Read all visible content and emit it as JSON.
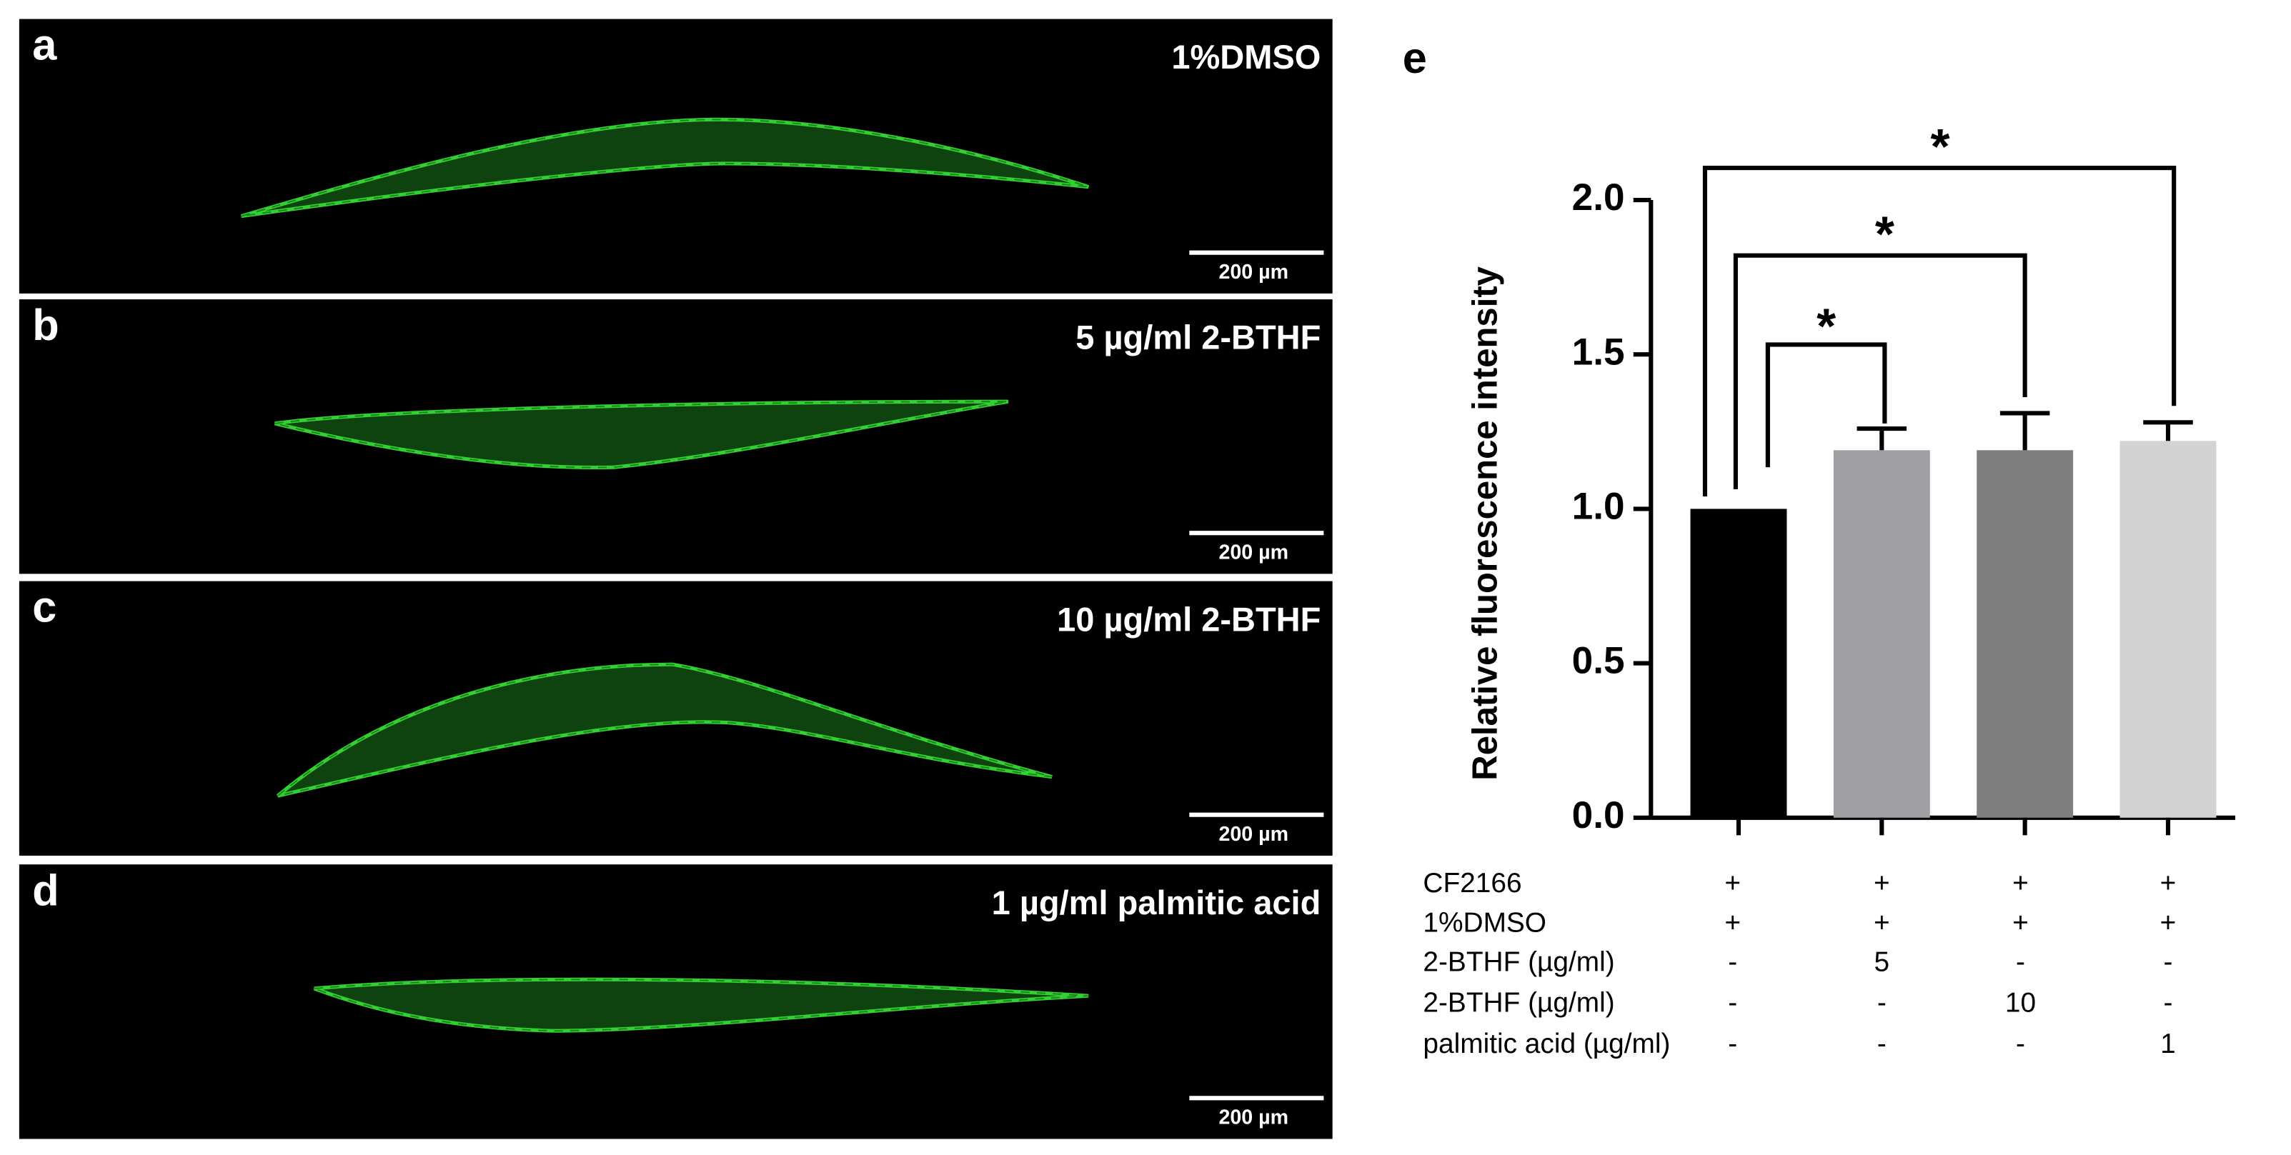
{
  "panels": [
    {
      "letter": "a",
      "title": "1%DMSO",
      "scale_bar": "200 µm"
    },
    {
      "letter": "b",
      "title": "5 µg/ml 2-BTHF",
      "scale_bar": "200 µm"
    },
    {
      "letter": "c",
      "title": "10 µg/ml 2-BTHF",
      "scale_bar": "200 µm"
    },
    {
      "letter": "d",
      "title": "1 µg/ml palmitic acid",
      "scale_bar": "200 µm"
    }
  ],
  "chart_letter": "e",
  "chart_data": {
    "type": "bar",
    "y_label": "Relative fluorescence intensity",
    "values": [
      1.0,
      1.19,
      1.19,
      1.22
    ],
    "errors": [
      null,
      0.07,
      0.12,
      0.06
    ],
    "colors": [
      "#000000",
      "#a0a0a4",
      "#7f7f7f",
      "#d3d3d3"
    ],
    "ylim": [
      0,
      2.0
    ],
    "yticks": [
      {
        "value": 0,
        "label": "0.0"
      },
      0.5,
      {
        "value": 1,
        "label": "1.0"
      },
      1.5,
      {
        "value": 2,
        "label": "2.0"
      }
    ],
    "significance": [
      {
        "label": "*"
      },
      {
        "label": "*"
      },
      {
        "label": "*"
      }
    ]
  },
  "treatment_table": {
    "rows": [
      {
        "label": "CF2166",
        "cells": [
          "+",
          "+",
          "+",
          "+"
        ]
      },
      {
        "label": "1%DMSO",
        "cells": [
          "+",
          "+",
          "+",
          "+"
        ]
      },
      {
        "label": "2-BTHF (µg/ml)",
        "cells": [
          "-",
          "5",
          "-",
          "-"
        ]
      },
      {
        "label": "2-BTHF (µg/ml)",
        "cells": [
          "-",
          "-",
          "10",
          "-"
        ]
      },
      {
        "label": "palmitic acid (µg/ml)",
        "cells": [
          "-",
          "-",
          "-",
          "1"
        ]
      }
    ]
  }
}
